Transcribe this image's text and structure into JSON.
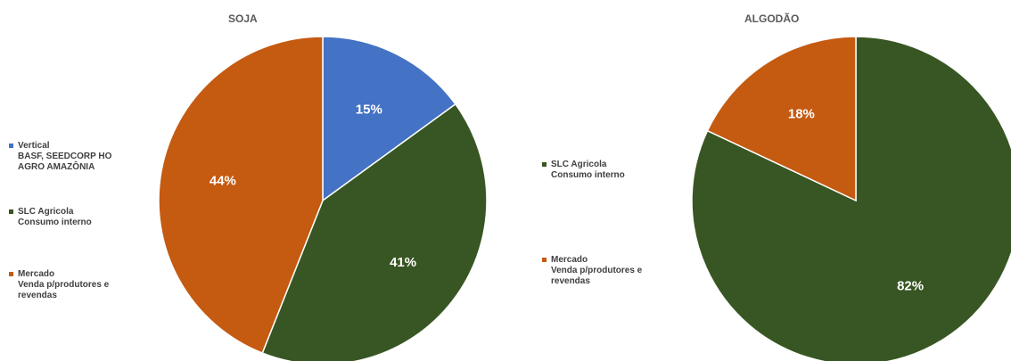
{
  "chart_data": [
    {
      "type": "pie",
      "title": "SOJA",
      "start_angle_deg": 0,
      "categories": [
        "Vertical\nBASF, SEEDCORP HO\nAGRO AMAZÔNIA",
        "SLC Agricola\nConsumo interno",
        "Mercado\nVenda p/produtores e\nrevendas"
      ],
      "values": [
        15,
        41,
        44
      ],
      "labels": [
        "15%",
        "41%",
        "44%"
      ],
      "colors": [
        "#4472C4",
        "#375623",
        "#C55A11"
      ],
      "legend_position": "left"
    },
    {
      "type": "pie",
      "title": "ALGODÃO",
      "start_angle_deg": 0,
      "categories": [
        "SLC Agricola\nConsumo interno",
        "Mercado\nVenda p/produtores e\nrevendas"
      ],
      "values": [
        82,
        18
      ],
      "labels": [
        "82%",
        "18%"
      ],
      "colors": [
        "#375623",
        "#C55A11"
      ],
      "legend_position": "left"
    }
  ]
}
